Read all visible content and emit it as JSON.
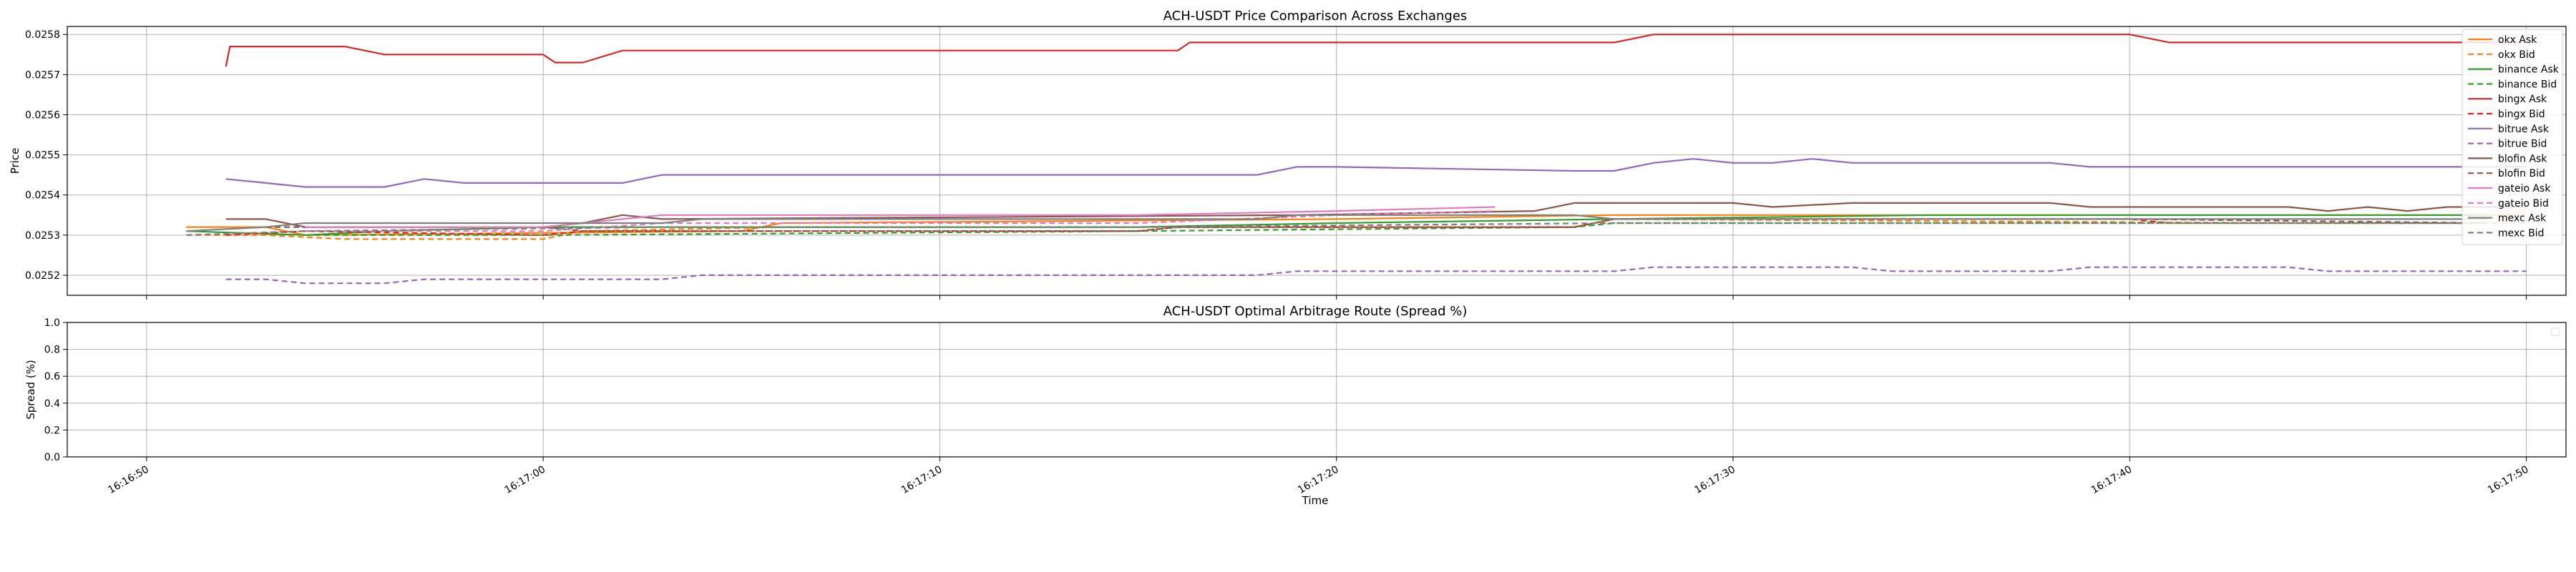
{
  "chart_data": [
    {
      "type": "line",
      "title": "ACH-USDT Price Comparison Across Exchanges",
      "xlabel": "",
      "ylabel": "Price",
      "ylim": [
        0.02515,
        0.02582
      ],
      "yticks": [
        0.0252,
        0.0253,
        0.0254,
        0.0255,
        0.0256,
        0.0257,
        0.0258
      ],
      "ytick_labels": [
        "0.0252",
        "0.0253",
        "0.0254",
        "0.0255",
        "0.0256",
        "0.0257",
        "0.0258"
      ],
      "xlim": [
        "16:16:48",
        "16:17:51"
      ],
      "grid": true,
      "legend_position": "top-right",
      "series": [
        {
          "name": "okx Ask",
          "color": "#ff7f0e",
          "dash": false,
          "x": [
            "16:16:51",
            "16:16:53",
            "16:16:54",
            "16:17:05",
            "16:17:06",
            "16:17:20",
            "16:17:27",
            "16:17:30",
            "16:17:44",
            "16:17:50"
          ],
          "y": [
            0.02532,
            0.02532,
            0.0253,
            0.02531,
            0.02533,
            0.02534,
            0.02535,
            0.02535,
            0.02535,
            0.02535
          ]
        },
        {
          "name": "okx Bid",
          "color": "#ff7f0e",
          "dash": true,
          "x": [
            "16:16:51",
            "16:16:53",
            "16:16:55",
            "16:17:00",
            "16:17:01",
            "16:17:06",
            "16:17:26",
            "16:17:27",
            "16:17:44",
            "16:17:50"
          ],
          "y": [
            0.0253,
            0.0253,
            0.02529,
            0.02529,
            0.02531,
            0.02532,
            0.02532,
            0.02534,
            0.02533,
            0.02533
          ]
        },
        {
          "name": "binance Ask",
          "color": "#2ca02c",
          "dash": false,
          "x": [
            "16:16:51",
            "16:16:54",
            "16:16:56",
            "16:17:00",
            "16:17:15",
            "16:17:20",
            "16:17:27",
            "16:17:35",
            "16:17:49"
          ],
          "y": [
            0.02531,
            0.0253,
            0.02531,
            0.02532,
            0.02532,
            0.02533,
            0.02534,
            0.02535,
            0.02535
          ]
        },
        {
          "name": "binance Bid",
          "color": "#2ca02c",
          "dash": true,
          "x": [
            "16:16:54",
            "16:17:00",
            "16:17:15",
            "16:17:26",
            "16:17:27",
            "16:17:49"
          ],
          "y": [
            0.0253,
            0.0253,
            0.02531,
            0.02532,
            0.02533,
            0.02533
          ]
        },
        {
          "name": "bingx Ask",
          "color": "#d62728",
          "dash": false,
          "x": [
            "16:16:52",
            "16:16:52.1",
            "16:16:55",
            "16:16:56",
            "16:17:00",
            "16:17:00.3",
            "16:17:01",
            "16:17:02",
            "16:17:16",
            "16:17:16.3",
            "16:17:27",
            "16:17:28",
            "16:17:40",
            "16:17:41",
            "16:17:50"
          ],
          "y": [
            0.02572,
            0.02577,
            0.02577,
            0.02575,
            0.02575,
            0.02573,
            0.02573,
            0.02576,
            0.02576,
            0.02578,
            0.02578,
            0.0258,
            0.0258,
            0.02578,
            0.02578
          ]
        },
        {
          "name": "bingx Bid",
          "color": "#d62728",
          "dash": true,
          "x": [
            "16:16:52",
            "16:16:54",
            "16:17:00",
            "16:17:01",
            "16:17:15",
            "16:17:16",
            "16:17:26",
            "16:17:27",
            "16:17:40",
            "16:17:41",
            "16:17:49"
          ],
          "y": [
            0.0253,
            0.02531,
            0.0253,
            0.02531,
            0.02531,
            0.02532,
            0.02532,
            0.02534,
            0.02534,
            0.02533,
            0.02533
          ]
        },
        {
          "name": "bitrue Ask",
          "color": "#9467bd",
          "dash": false,
          "x": [
            "16:16:52",
            "16:16:53",
            "16:16:54",
            "16:16:56",
            "16:16:57",
            "16:16:58",
            "16:17:02",
            "16:17:03",
            "16:17:04",
            "16:17:18",
            "16:17:19",
            "16:17:20",
            "16:17:26",
            "16:17:27",
            "16:17:28",
            "16:17:29",
            "16:17:30",
            "16:17:31",
            "16:17:32",
            "16:17:33",
            "16:17:38",
            "16:17:39",
            "16:17:50"
          ],
          "y": [
            0.02544,
            0.02543,
            0.02542,
            0.02542,
            0.02544,
            0.02543,
            0.02543,
            0.02545,
            0.02545,
            0.02545,
            0.02547,
            0.02547,
            0.02546,
            0.02546,
            0.02548,
            0.02549,
            0.02548,
            0.02548,
            0.02549,
            0.02548,
            0.02548,
            0.02547,
            0.02547
          ]
        },
        {
          "name": "bitrue Bid",
          "color": "#9467bd",
          "dash": true,
          "x": [
            "16:16:52",
            "16:16:53",
            "16:16:54",
            "16:16:56",
            "16:16:57",
            "16:17:03",
            "16:17:04",
            "16:17:18",
            "16:17:19",
            "16:17:27",
            "16:17:28",
            "16:17:33",
            "16:17:34",
            "16:17:38",
            "16:17:39",
            "16:17:44",
            "16:17:45",
            "16:17:50"
          ],
          "y": [
            0.02519,
            0.02519,
            0.02518,
            0.02518,
            0.02519,
            0.02519,
            0.0252,
            0.0252,
            0.02521,
            0.02521,
            0.02522,
            0.02522,
            0.02521,
            0.02521,
            0.02522,
            0.02522,
            0.02521,
            0.02521
          ]
        },
        {
          "name": "blofin Ask",
          "color": "#8c564b",
          "dash": false,
          "x": [
            "16:16:52",
            "16:16:53",
            "16:16:54",
            "16:17:00",
            "16:17:01",
            "16:17:02",
            "16:17:03",
            "16:17:19",
            "16:17:25",
            "16:17:26",
            "16:17:30",
            "16:17:31",
            "16:17:33",
            "16:17:38",
            "16:17:39",
            "16:17:44",
            "16:17:45",
            "16:17:46",
            "16:17:47",
            "16:17:48",
            "16:17:50"
          ],
          "y": [
            0.02534,
            0.02534,
            0.02532,
            0.02532,
            0.02533,
            0.02535,
            0.02534,
            0.02535,
            0.02536,
            0.02538,
            0.02538,
            0.02537,
            0.02538,
            0.02538,
            0.02537,
            0.02537,
            0.02536,
            0.02537,
            0.02536,
            0.02537,
            0.02537
          ]
        },
        {
          "name": "blofin Bid",
          "color": "#8c564b",
          "dash": true,
          "x": [
            "16:16:53",
            "16:17:00",
            "16:17:01",
            "16:17:15",
            "16:17:16",
            "16:17:26",
            "16:17:27",
            "16:17:40",
            "16:17:49"
          ],
          "y": [
            0.02532,
            0.02532,
            0.02531,
            0.02531,
            0.02532,
            0.02532,
            0.02534,
            0.02534,
            0.02533
          ]
        },
        {
          "name": "gateio Ask",
          "color": "#e377c2",
          "dash": false,
          "x": [
            "16:16:54",
            "16:17:00",
            "16:17:03",
            "16:17:10",
            "16:17:15",
            "16:17:20",
            "16:17:24"
          ],
          "y": [
            0.02532,
            0.02532,
            0.02535,
            0.02535,
            0.02535,
            0.02536,
            0.02537
          ]
        },
        {
          "name": "gateio Bid",
          "color": "#e377c2",
          "dash": true,
          "x": [
            "16:16:54",
            "16:17:00",
            "16:17:03",
            "16:17:15",
            "16:17:20",
            "16:17:24"
          ],
          "y": [
            0.02531,
            0.02531,
            0.02533,
            0.02533,
            0.02535,
            0.02536
          ]
        },
        {
          "name": "mexc Ask",
          "color": "#7f7f7f",
          "dash": false,
          "x": [
            "16:16:51",
            "16:16:53",
            "16:16:54",
            "16:17:03",
            "16:17:04",
            "16:17:18",
            "16:17:19",
            "16:17:26",
            "16:17:27",
            "16:17:49"
          ],
          "y": [
            0.02531,
            0.02532,
            0.02533,
            0.02533,
            0.02534,
            0.02534,
            0.02535,
            0.02535,
            0.02534,
            0.02534
          ]
        },
        {
          "name": "mexc Bid",
          "color": "#7f7f7f",
          "dash": true,
          "x": [
            "16:16:51",
            "16:16:54",
            "16:17:03",
            "16:17:15",
            "16:17:27",
            "16:17:49"
          ],
          "y": [
            0.0253,
            0.02531,
            0.02532,
            0.02532,
            0.02533,
            0.02533
          ]
        }
      ]
    },
    {
      "type": "line",
      "title": "ACH-USDT Optimal Arbitrage Route (Spread %)",
      "xlabel": "Time",
      "ylabel": "Spread (%)",
      "ylim": [
        0.0,
        1.0
      ],
      "yticks": [
        0.0,
        0.2,
        0.4,
        0.6,
        0.8,
        1.0
      ],
      "ytick_labels": [
        "0.0",
        "0.2",
        "0.4",
        "0.6",
        "0.8",
        "1.0"
      ],
      "xlim": [
        "16:16:48",
        "16:17:51"
      ],
      "xticks": [
        "16:16:50",
        "16:17:00",
        "16:17:10",
        "16:17:20",
        "16:17:30",
        "16:17:40",
        "16:17:50"
      ],
      "xtick_labels": [
        "16:16:50",
        "16:17:00",
        "16:17:10",
        "16:17:20",
        "16:17:30",
        "16:17:40",
        "16:17:50"
      ],
      "grid": true,
      "legend_position": "top-right",
      "series": []
    }
  ]
}
